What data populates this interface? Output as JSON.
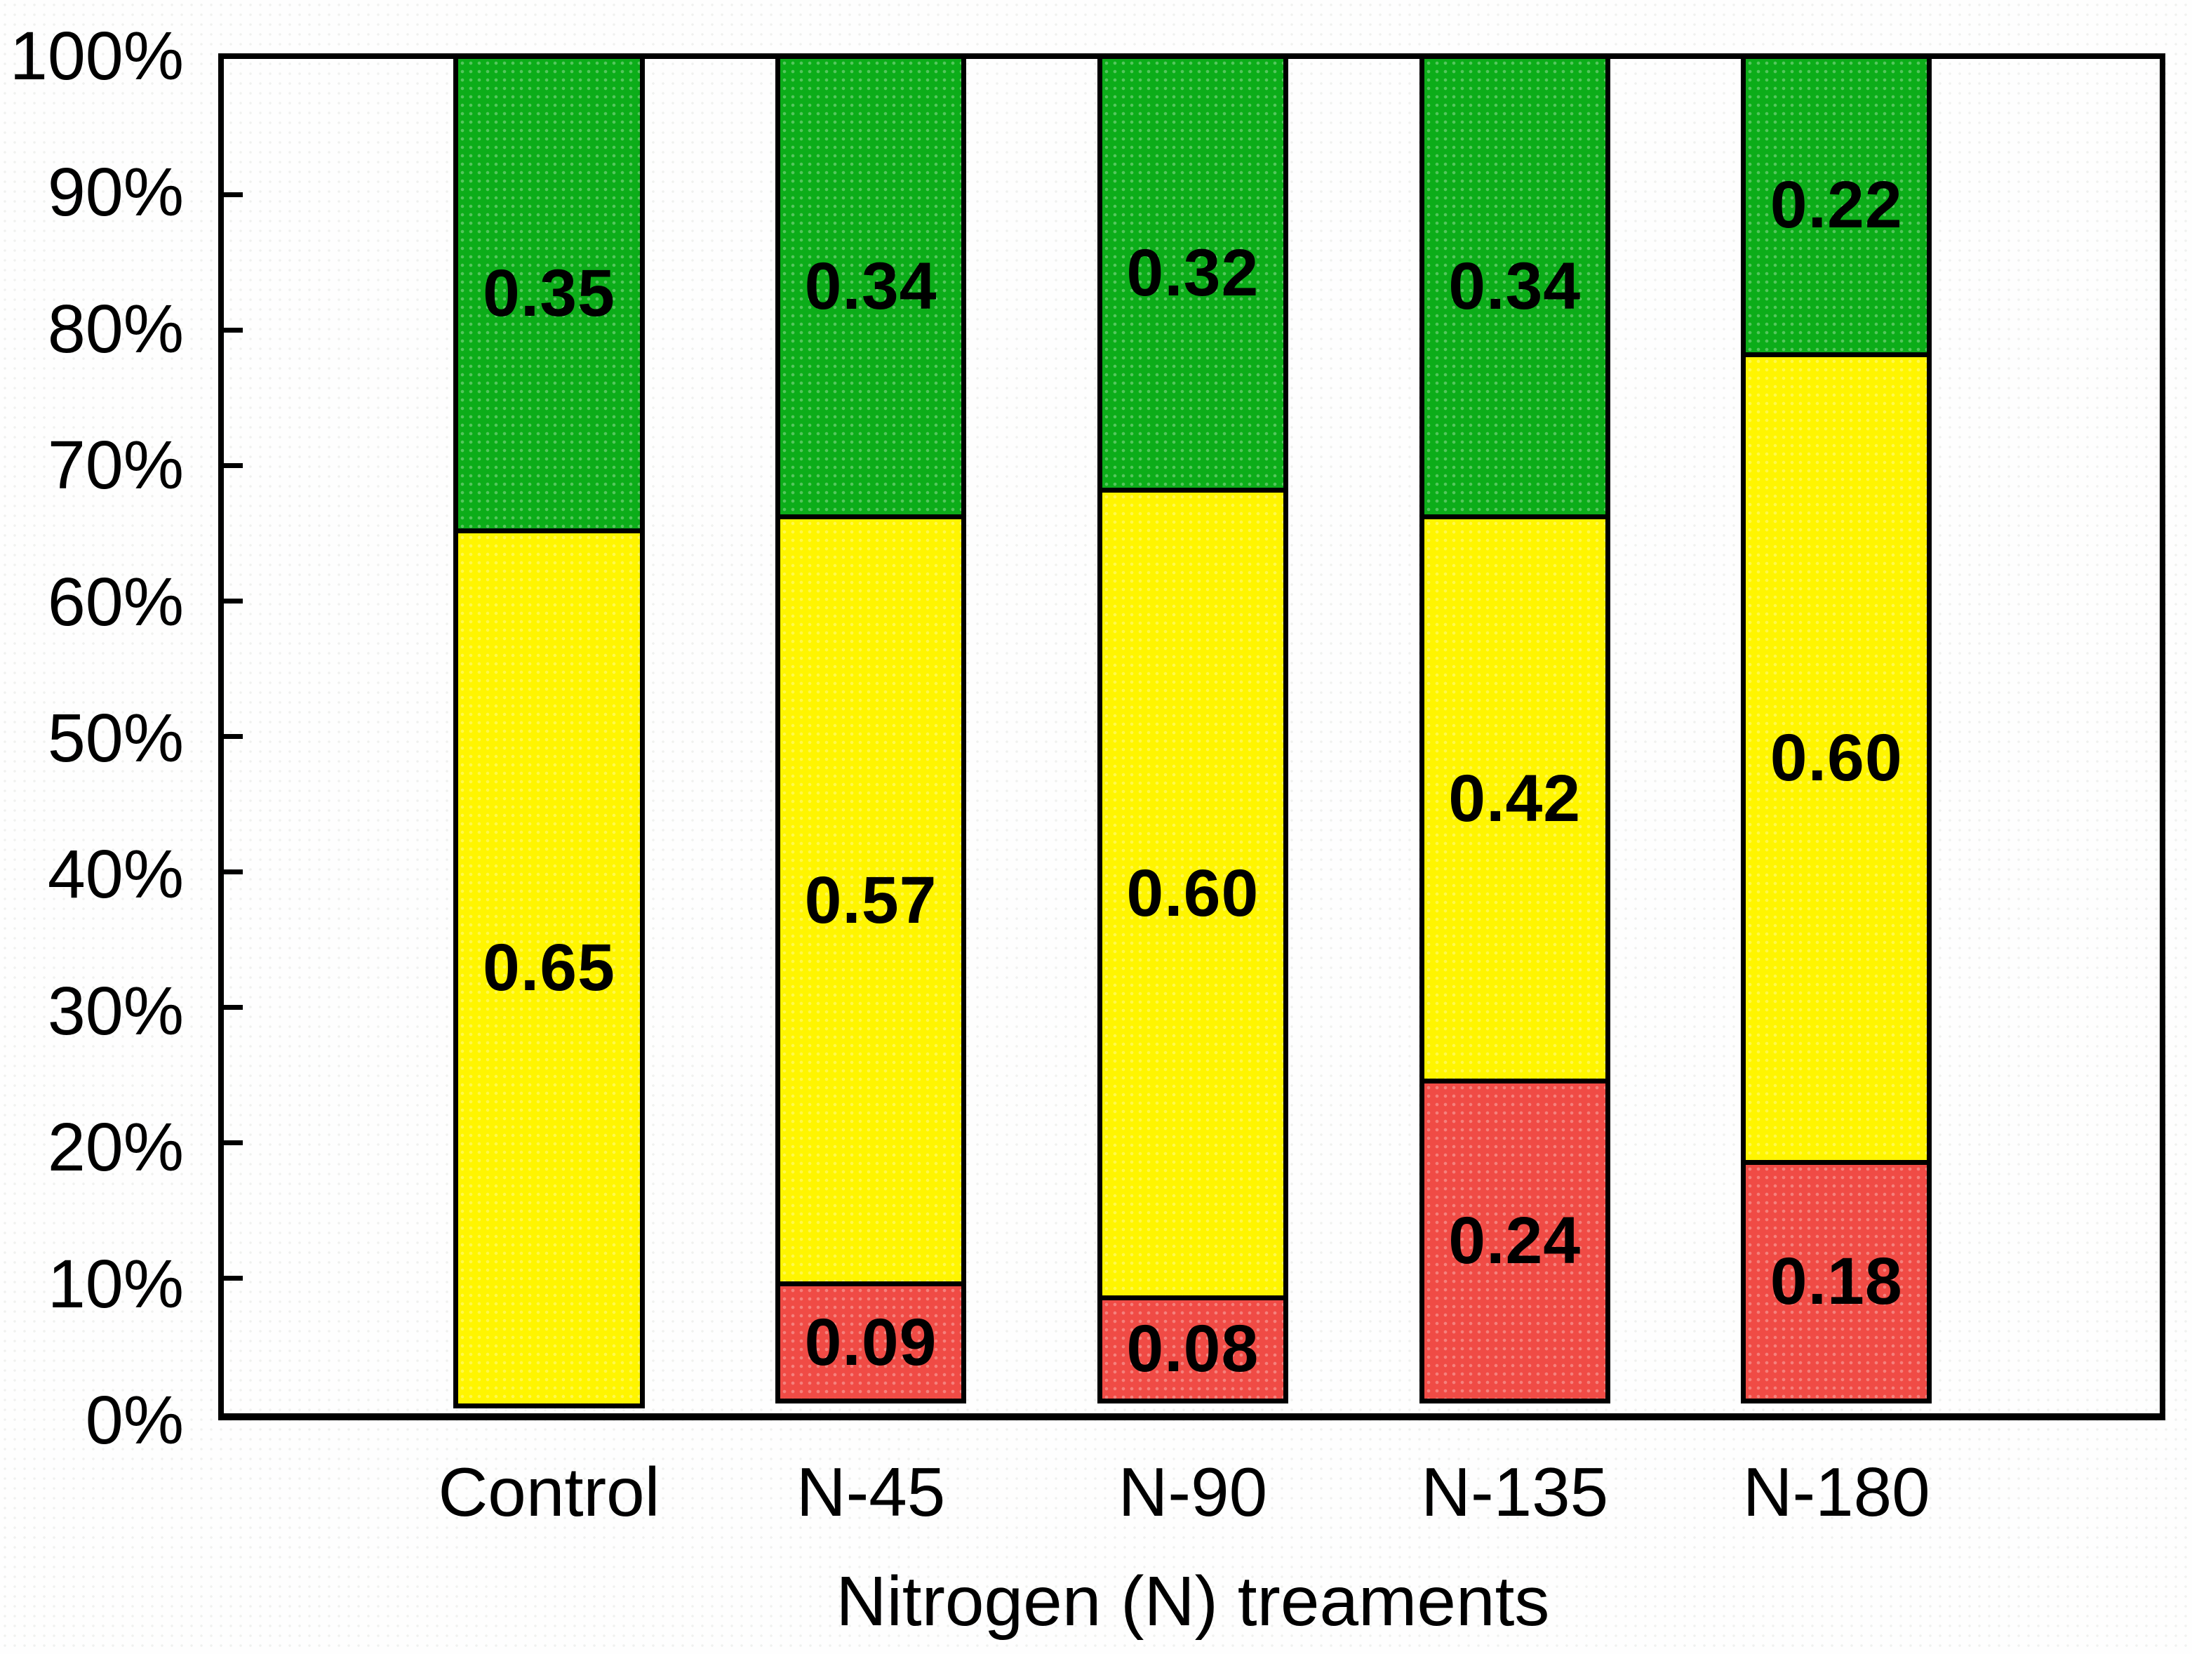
{
  "chart_data": {
    "type": "bar",
    "subtype": "stacked-100-percent-column",
    "title": "",
    "xlabel": "Nitrogen (N) treaments",
    "ylabel": "",
    "ylim": [
      0,
      1
    ],
    "grid": false,
    "legend": null,
    "axis_color": "#000000",
    "plot_background": "#ffffff",
    "y_tick_labels": [
      "100%",
      "90%",
      "80%",
      "70%",
      "60%",
      "50%",
      "40%",
      "30%",
      "20%",
      "10%",
      "0%"
    ],
    "categories": [
      "Control",
      "N-45",
      "N-90",
      "N-135",
      "N-180"
    ],
    "series": [
      {
        "name": "red-bottom-segment",
        "color": "#F04B45",
        "values": [
          0.0,
          0.09,
          0.08,
          0.24,
          0.18
        ],
        "labels": [
          "",
          "0.09",
          "0.08",
          "0.24",
          "0.18"
        ]
      },
      {
        "name": "yellow-middle-segment",
        "color": "#FFF500",
        "values": [
          0.65,
          0.57,
          0.6,
          0.42,
          0.6
        ],
        "labels": [
          "0.65",
          "0.57",
          "0.60",
          "0.42",
          "0.60"
        ]
      },
      {
        "name": "green-top-segment",
        "color": "#0CAD19",
        "values": [
          0.35,
          0.34,
          0.32,
          0.34,
          0.22
        ],
        "labels": [
          "0.35",
          "0.34",
          "0.32",
          "0.34",
          "0.22"
        ]
      }
    ]
  }
}
